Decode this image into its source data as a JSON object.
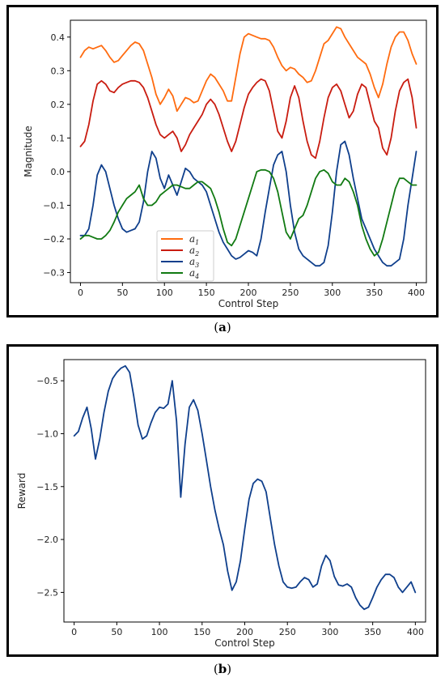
{
  "figure": {
    "caption_a": "a",
    "caption_b": "b"
  },
  "chart_data": [
    {
      "type": "line",
      "xlabel": "Control Step",
      "ylabel": "Magnitude",
      "xlim": [
        -12,
        412
      ],
      "ylim": [
        -0.33,
        0.45
      ],
      "xticks": [
        0,
        50,
        100,
        150,
        200,
        250,
        300,
        350,
        400
      ],
      "yticks": [
        -0.3,
        -0.2,
        -0.1,
        0.0,
        0.1,
        0.2,
        0.3,
        0.4
      ],
      "ytick_labels": [
        "−0.3",
        "−0.2",
        "−0.1",
        "0.0",
        "0.1",
        "0.2",
        "0.3",
        "0.4"
      ],
      "grid": false,
      "legend": "lower-left-center",
      "series": [
        {
          "name": "a1",
          "label_base": "a",
          "label_sub": "1",
          "color": "#ff6b0f",
          "x": [
            0,
            5,
            10,
            15,
            20,
            25,
            30,
            35,
            40,
            45,
            50,
            55,
            60,
            65,
            70,
            75,
            80,
            85,
            90,
            95,
            100,
            105,
            110,
            115,
            120,
            125,
            130,
            135,
            140,
            145,
            150,
            155,
            160,
            165,
            170,
            175,
            180,
            185,
            190,
            195,
            200,
            205,
            210,
            215,
            220,
            225,
            230,
            235,
            240,
            245,
            250,
            255,
            260,
            265,
            270,
            275,
            280,
            285,
            290,
            295,
            300,
            305,
            310,
            315,
            320,
            325,
            330,
            335,
            340,
            345,
            350,
            355,
            360,
            365,
            370,
            375,
            380,
            385,
            390,
            395,
            400
          ],
          "values": [
            0.34,
            0.36,
            0.37,
            0.365,
            0.37,
            0.375,
            0.36,
            0.34,
            0.325,
            0.33,
            0.345,
            0.36,
            0.375,
            0.385,
            0.38,
            0.36,
            0.32,
            0.28,
            0.23,
            0.2,
            0.22,
            0.245,
            0.225,
            0.18,
            0.2,
            0.22,
            0.215,
            0.205,
            0.21,
            0.24,
            0.27,
            0.29,
            0.28,
            0.26,
            0.24,
            0.21,
            0.21,
            0.28,
            0.35,
            0.4,
            0.41,
            0.405,
            0.4,
            0.395,
            0.395,
            0.39,
            0.37,
            0.34,
            0.315,
            0.3,
            0.31,
            0.305,
            0.29,
            0.28,
            0.265,
            0.27,
            0.3,
            0.34,
            0.38,
            0.39,
            0.41,
            0.43,
            0.425,
            0.4,
            0.38,
            0.36,
            0.34,
            0.33,
            0.32,
            0.29,
            0.25,
            0.22,
            0.26,
            0.32,
            0.37,
            0.4,
            0.415,
            0.415,
            0.39,
            0.35,
            0.32
          ]
        },
        {
          "name": "a2",
          "label_base": "a",
          "label_sub": "2",
          "color": "#c91c10",
          "x": [
            0,
            5,
            10,
            15,
            20,
            25,
            30,
            35,
            40,
            45,
            50,
            55,
            60,
            65,
            70,
            75,
            80,
            85,
            90,
            95,
            100,
            105,
            110,
            115,
            120,
            125,
            130,
            135,
            140,
            145,
            150,
            155,
            160,
            165,
            170,
            175,
            180,
            185,
            190,
            195,
            200,
            205,
            210,
            215,
            220,
            225,
            230,
            235,
            240,
            245,
            250,
            255,
            260,
            265,
            270,
            275,
            280,
            285,
            290,
            295,
            300,
            305,
            310,
            315,
            320,
            325,
            330,
            335,
            340,
            345,
            350,
            355,
            360,
            365,
            370,
            375,
            380,
            385,
            390,
            395,
            400
          ],
          "values": [
            0.075,
            0.09,
            0.14,
            0.21,
            0.26,
            0.27,
            0.26,
            0.24,
            0.235,
            0.25,
            0.26,
            0.265,
            0.27,
            0.27,
            0.265,
            0.25,
            0.22,
            0.18,
            0.14,
            0.11,
            0.1,
            0.11,
            0.12,
            0.1,
            0.06,
            0.08,
            0.11,
            0.13,
            0.15,
            0.17,
            0.2,
            0.215,
            0.2,
            0.17,
            0.13,
            0.09,
            0.06,
            0.09,
            0.14,
            0.19,
            0.23,
            0.25,
            0.265,
            0.275,
            0.27,
            0.24,
            0.18,
            0.12,
            0.1,
            0.15,
            0.22,
            0.255,
            0.22,
            0.15,
            0.09,
            0.05,
            0.04,
            0.09,
            0.16,
            0.22,
            0.25,
            0.26,
            0.24,
            0.2,
            0.16,
            0.18,
            0.23,
            0.26,
            0.25,
            0.2,
            0.15,
            0.13,
            0.07,
            0.05,
            0.1,
            0.18,
            0.24,
            0.265,
            0.275,
            0.22,
            0.13
          ]
        },
        {
          "name": "a3",
          "label_base": "a",
          "label_sub": "3",
          "color": "#0f3f8c",
          "x": [
            0,
            5,
            10,
            15,
            20,
            25,
            30,
            35,
            40,
            45,
            50,
            55,
            60,
            65,
            70,
            75,
            80,
            85,
            90,
            95,
            100,
            105,
            110,
            115,
            120,
            125,
            130,
            135,
            140,
            145,
            150,
            155,
            160,
            165,
            170,
            175,
            180,
            185,
            190,
            195,
            200,
            205,
            210,
            215,
            220,
            225,
            230,
            235,
            240,
            245,
            250,
            255,
            260,
            265,
            270,
            275,
            280,
            285,
            290,
            295,
            300,
            305,
            310,
            315,
            320,
            325,
            330,
            335,
            340,
            345,
            350,
            355,
            360,
            365,
            370,
            375,
            380,
            385,
            390,
            395,
            400
          ],
          "values": [
            -0.19,
            -0.19,
            -0.17,
            -0.1,
            -0.01,
            0.02,
            0.0,
            -0.05,
            -0.1,
            -0.14,
            -0.17,
            -0.18,
            -0.175,
            -0.17,
            -0.15,
            -0.09,
            0.0,
            0.06,
            0.04,
            -0.02,
            -0.05,
            -0.01,
            -0.04,
            -0.07,
            -0.03,
            0.01,
            0.0,
            -0.02,
            -0.03,
            -0.04,
            -0.06,
            -0.1,
            -0.14,
            -0.18,
            -0.21,
            -0.23,
            -0.25,
            -0.26,
            -0.255,
            -0.245,
            -0.235,
            -0.24,
            -0.25,
            -0.2,
            -0.12,
            -0.05,
            0.02,
            0.05,
            0.06,
            0.0,
            -0.1,
            -0.18,
            -0.23,
            -0.25,
            -0.26,
            -0.27,
            -0.28,
            -0.28,
            -0.27,
            -0.22,
            -0.12,
            0.0,
            0.08,
            0.09,
            0.05,
            -0.02,
            -0.08,
            -0.14,
            -0.17,
            -0.2,
            -0.23,
            -0.25,
            -0.27,
            -0.28,
            -0.28,
            -0.27,
            -0.26,
            -0.2,
            -0.1,
            -0.02,
            0.06
          ]
        },
        {
          "name": "a4",
          "label_base": "a",
          "label_sub": "4",
          "color": "#117a12",
          "x": [
            0,
            5,
            10,
            15,
            20,
            25,
            30,
            35,
            40,
            45,
            50,
            55,
            60,
            65,
            70,
            75,
            80,
            85,
            90,
            95,
            100,
            105,
            110,
            115,
            120,
            125,
            130,
            135,
            140,
            145,
            150,
            155,
            160,
            165,
            170,
            175,
            180,
            185,
            190,
            195,
            200,
            205,
            210,
            215,
            220,
            225,
            230,
            235,
            240,
            245,
            250,
            255,
            260,
            265,
            270,
            275,
            280,
            285,
            290,
            295,
            300,
            305,
            310,
            315,
            320,
            325,
            330,
            335,
            340,
            345,
            350,
            355,
            360,
            365,
            370,
            375,
            380,
            385,
            390,
            395,
            400
          ],
          "values": [
            -0.2,
            -0.19,
            -0.19,
            -0.195,
            -0.2,
            -0.2,
            -0.19,
            -0.175,
            -0.15,
            -0.12,
            -0.1,
            -0.08,
            -0.07,
            -0.06,
            -0.04,
            -0.08,
            -0.1,
            -0.1,
            -0.09,
            -0.07,
            -0.06,
            -0.05,
            -0.04,
            -0.04,
            -0.045,
            -0.05,
            -0.05,
            -0.04,
            -0.03,
            -0.03,
            -0.04,
            -0.05,
            -0.08,
            -0.12,
            -0.17,
            -0.21,
            -0.22,
            -0.2,
            -0.16,
            -0.12,
            -0.08,
            -0.04,
            0.0,
            0.005,
            0.005,
            0.0,
            -0.02,
            -0.06,
            -0.12,
            -0.18,
            -0.2,
            -0.17,
            -0.14,
            -0.13,
            -0.1,
            -0.06,
            -0.02,
            0.0,
            0.005,
            -0.005,
            -0.03,
            -0.04,
            -0.04,
            -0.02,
            -0.03,
            -0.06,
            -0.1,
            -0.16,
            -0.2,
            -0.23,
            -0.25,
            -0.24,
            -0.2,
            -0.15,
            -0.1,
            -0.05,
            -0.02,
            -0.02,
            -0.03,
            -0.04,
            -0.04
          ]
        }
      ]
    },
    {
      "type": "line",
      "xlabel": "Control Step",
      "ylabel": "Reward",
      "xlim": [
        -12,
        412
      ],
      "ylim": [
        -2.78,
        -0.3
      ],
      "xticks": [
        0,
        50,
        100,
        150,
        200,
        250,
        300,
        350,
        400
      ],
      "yticks": [
        -2.5,
        -2.0,
        -1.5,
        -1.0,
        -0.5
      ],
      "ytick_labels": [
        "−2.5",
        "−2.0",
        "−1.5",
        "−1.0",
        "−0.5"
      ],
      "grid": false,
      "series": [
        {
          "name": "",
          "color": "#0f3f8c",
          "x": [
            0,
            5,
            10,
            15,
            20,
            25,
            30,
            35,
            40,
            45,
            50,
            55,
            60,
            65,
            70,
            75,
            80,
            85,
            90,
            95,
            100,
            105,
            110,
            115,
            120,
            125,
            130,
            135,
            140,
            145,
            150,
            155,
            160,
            165,
            170,
            175,
            180,
            185,
            190,
            195,
            200,
            205,
            210,
            215,
            220,
            225,
            230,
            235,
            240,
            245,
            250,
            255,
            260,
            265,
            270,
            275,
            280,
            285,
            290,
            295,
            300,
            305,
            310,
            315,
            320,
            325,
            330,
            335,
            340,
            345,
            350,
            355,
            360,
            365,
            370,
            375,
            380,
            385,
            390,
            395,
            400
          ],
          "values": [
            -1.02,
            -0.98,
            -0.85,
            -0.75,
            -0.95,
            -1.24,
            -1.05,
            -0.8,
            -0.6,
            -0.48,
            -0.42,
            -0.38,
            -0.36,
            -0.42,
            -0.65,
            -0.92,
            -1.05,
            -1.02,
            -0.9,
            -0.8,
            -0.75,
            -0.76,
            -0.72,
            -0.5,
            -0.88,
            -1.6,
            -1.1,
            -0.75,
            -0.68,
            -0.78,
            -1.0,
            -1.25,
            -1.5,
            -1.72,
            -1.9,
            -2.05,
            -2.3,
            -2.48,
            -2.4,
            -2.2,
            -1.9,
            -1.62,
            -1.47,
            -1.43,
            -1.45,
            -1.55,
            -1.8,
            -2.05,
            -2.25,
            -2.4,
            -2.45,
            -2.46,
            -2.45,
            -2.4,
            -2.36,
            -2.38,
            -2.45,
            -2.42,
            -2.25,
            -2.15,
            -2.2,
            -2.35,
            -2.43,
            -2.44,
            -2.42,
            -2.45,
            -2.55,
            -2.62,
            -2.66,
            -2.64,
            -2.55,
            -2.45,
            -2.38,
            -2.33,
            -2.33,
            -2.36,
            -2.45,
            -2.5,
            -2.45,
            -2.4,
            -2.5
          ]
        }
      ]
    }
  ]
}
